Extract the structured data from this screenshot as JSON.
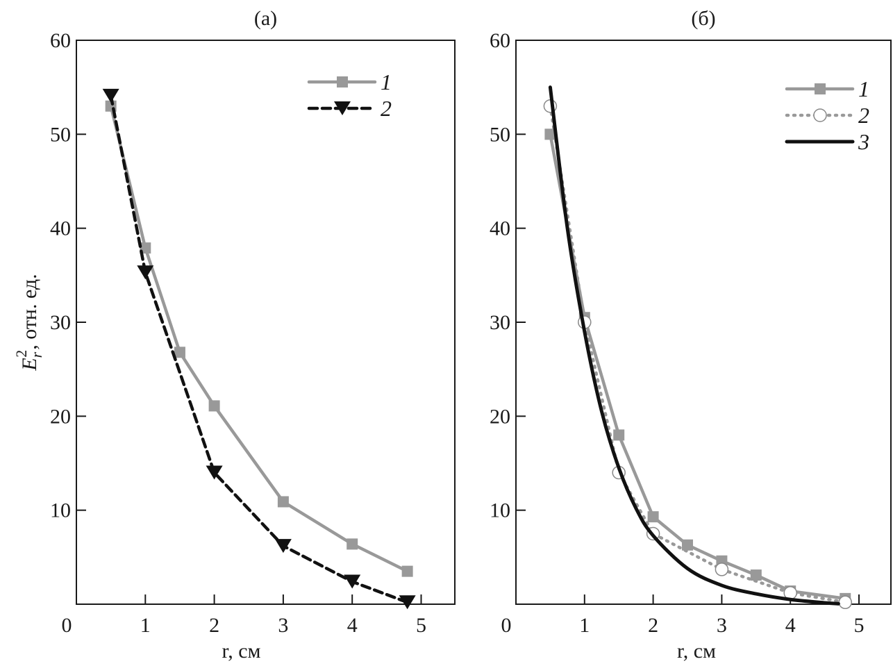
{
  "chart_data": [
    {
      "type": "line",
      "title": "(a)",
      "xlabel": "r, см",
      "ylabel": "E_r^2, отн. ед.",
      "xlim": [
        0,
        5.5
      ],
      "ylim": [
        0,
        60
      ],
      "xticks": [
        "0",
        "1",
        "2",
        "3",
        "4",
        "5"
      ],
      "yticks": [
        "10",
        "20",
        "30",
        "40",
        "50",
        "60"
      ],
      "grid": false,
      "legend": "top-right",
      "series": [
        {
          "name": "1",
          "color": "#999999",
          "style": "solid",
          "marker": "square",
          "x": [
            0.5,
            1,
            1.5,
            2,
            3,
            4,
            4.8
          ],
          "y": [
            53.0,
            37.9,
            26.8,
            21.1,
            10.9,
            6.4,
            3.5
          ]
        },
        {
          "name": "2",
          "color": "#111111",
          "style": "dashed",
          "marker": "triangle-down",
          "x": [
            0.5,
            1,
            2,
            3,
            4,
            4.8
          ],
          "y": [
            54.1,
            35.3,
            14.0,
            6.2,
            2.4,
            0.2
          ]
        }
      ]
    },
    {
      "type": "line",
      "title": "(б)",
      "xlabel": "r, см",
      "ylabel": "",
      "xlim": [
        0,
        5.5
      ],
      "ylim": [
        0,
        60
      ],
      "xticks": [
        "0",
        "1",
        "2",
        "3",
        "4",
        "5"
      ],
      "yticks": [
        "10",
        "20",
        "30",
        "40",
        "50",
        "60"
      ],
      "grid": false,
      "legend": "top-right",
      "series": [
        {
          "name": "1",
          "color": "#999999",
          "style": "solid",
          "marker": "square",
          "x": [
            0.5,
            1,
            1.5,
            2,
            2.5,
            3,
            3.5,
            4,
            4.8
          ],
          "y": [
            50.0,
            30.5,
            18.0,
            9.3,
            6.3,
            4.6,
            3.1,
            1.4,
            0.6
          ]
        },
        {
          "name": "2",
          "color": "#999999",
          "style": "dotted",
          "marker": "circle",
          "x": [
            0.5,
            1,
            1.5,
            2,
            3,
            4,
            4.8
          ],
          "y": [
            53.0,
            30.0,
            14.0,
            7.5,
            3.7,
            1.2,
            0.2
          ]
        },
        {
          "name": "3",
          "color": "#111111",
          "style": "solid",
          "marker": "none",
          "x": [
            0.5,
            0.75,
            1,
            1.25,
            1.5,
            1.75,
            2,
            2.5,
            3,
            3.5,
            4,
            4.5,
            4.7
          ],
          "y": [
            55,
            40,
            29,
            20.5,
            14.5,
            10.2,
            7.3,
            3.8,
            2.0,
            1.1,
            0.5,
            0.15,
            0.05
          ]
        }
      ]
    }
  ]
}
